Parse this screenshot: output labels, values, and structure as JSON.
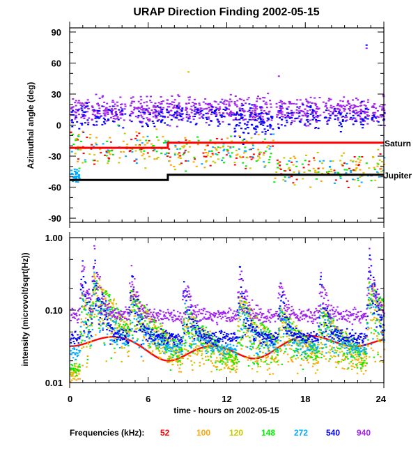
{
  "chart_data": [
    {
      "type": "scatter",
      "title": "URAP Direction Finding  2002-05-15",
      "xlabel": "",
      "ylabel": "Azimuthal angle (deg)",
      "xlim": [
        0,
        24
      ],
      "ylim": [
        -94,
        94
      ],
      "yticks": [
        90,
        60,
        30,
        0,
        -30,
        -60,
        -90
      ],
      "ytick_labels": [
        "90",
        "60",
        "30",
        "0",
        "-30",
        "-60",
        "-90"
      ],
      "reference_lines": [
        {
          "name": "Saturn",
          "color": "#ff0000",
          "segments": [
            [
              0,
              7.5,
              -22
            ],
            [
              7.5,
              24,
              -17
            ]
          ]
        },
        {
          "name": "Jupiter",
          "color": "#000000",
          "segments": [
            [
              0,
              7.5,
              -53
            ],
            [
              7.5,
              24,
              -48
            ]
          ]
        }
      ],
      "series_description": "scattered direction-finding points per frequency band; 940 kHz and 540 kHz clustered near +15 deg, lower bands near -20 to -50 deg"
    },
    {
      "type": "line",
      "title": "",
      "xlabel": "time - hours on 2002-05-15",
      "ylabel": "intensity (microvolt/sqrt(Hz))",
      "xlim": [
        0,
        24
      ],
      "xticks": [
        0,
        6,
        12,
        18,
        24
      ],
      "xtick_labels": [
        "0",
        "6",
        "12",
        "18",
        "24"
      ],
      "yscale": "log",
      "ylim": [
        0.01,
        1.0
      ],
      "yticks": [
        1.0,
        0.1,
        0.01
      ],
      "ytick_labels": [
        "1.00",
        "0.10",
        "0.01"
      ],
      "series": [
        {
          "name": "52",
          "color": "#ff0000",
          "baseline": 0.025
        },
        {
          "name": "100",
          "color": "#ffa500",
          "baseline": 0.013
        },
        {
          "name": "120",
          "color": "#c8c800",
          "baseline": 0.015
        },
        {
          "name": "148",
          "color": "#00ee00",
          "baseline": 0.016
        },
        {
          "name": "272",
          "color": "#00aaff",
          "baseline": 0.028
        },
        {
          "name": "540",
          "color": "#0000ff",
          "baseline": 0.043
        },
        {
          "name": "940",
          "color": "#a020f0",
          "baseline": 0.085
        }
      ],
      "peaks_hours": [
        0.9,
        1.8,
        4.6,
        8.7,
        12.9,
        16.0,
        19.1,
        22.8
      ]
    }
  ],
  "legend": {
    "label": "Frequencies (kHz):",
    "items": [
      {
        "text": "52",
        "color": "#ff0000"
      },
      {
        "text": "100",
        "color": "#ffa500"
      },
      {
        "text": "120",
        "color": "#c8c800"
      },
      {
        "text": "148",
        "color": "#00ee00"
      },
      {
        "text": "272",
        "color": "#00aaff"
      },
      {
        "text": "540",
        "color": "#0000ff"
      },
      {
        "text": "940",
        "color": "#a020f0"
      }
    ]
  }
}
